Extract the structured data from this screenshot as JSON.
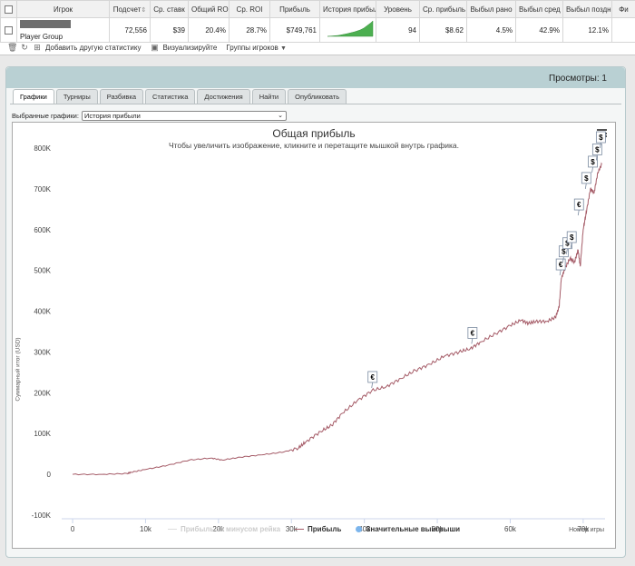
{
  "table": {
    "headers": [
      "Игрок",
      "Подсчет",
      "Ср. ставк",
      "Общий ROI",
      "Ср. ROI",
      "Прибыль",
      "История прибыли",
      "Уровень",
      "Ср. прибыль",
      "Выбыл рано",
      "Выбыл сред",
      "Выбыл поздн",
      "Фи"
    ],
    "row": {
      "player": "Player Group",
      "count": "72,556",
      "avg_stake": "$39",
      "total_roi": "20.4%",
      "avg_roi": "28.7%",
      "profit": "$749,761",
      "level": "94",
      "avg_profit": "$8.62",
      "early": "4.5%",
      "mid": "42.9%",
      "late": "12.1%"
    },
    "sparkline_color": "#4caf50"
  },
  "actions": {
    "add_stat": "Добавить другую статистику",
    "visualize": "Визуализируйте",
    "groups": "Группы игроков"
  },
  "panel": {
    "views": "Просмотры: 1",
    "tabs": [
      "Графики",
      "Турниры",
      "Разбивка",
      "Статистика",
      "Достижения",
      "Найти",
      "Опубликовать"
    ],
    "active_tab": 0,
    "select_label": "Выбранные графики:",
    "select_value": "История прибыли"
  },
  "chart_data": {
    "type": "line",
    "title": "Общая прибыль",
    "subtitle": "Чтобы увеличить изображение, кликните и перетащите мышкой внутрь графика.",
    "xlabel": "Номер игры",
    "ylabel": "Суммарный итог (USD)",
    "xlim": [
      -1500,
      73000
    ],
    "ylim": [
      -100000,
      800000
    ],
    "x_ticks": [
      0,
      10000,
      20000,
      30000,
      40000,
      50000,
      60000,
      70000
    ],
    "x_tick_labels": [
      "0",
      "10k",
      "20k",
      "30k",
      "40k",
      "50k",
      "60k",
      "70k"
    ],
    "y_ticks": [
      -100000,
      0,
      100000,
      200000,
      300000,
      400000,
      500000,
      600000,
      700000,
      800000
    ],
    "y_tick_labels": [
      "-100K",
      "0",
      "100K",
      "200K",
      "300K",
      "400K",
      "500K",
      "600K",
      "700K",
      "800K"
    ],
    "series": [
      {
        "name": "Прибыль",
        "color": "#a55b67",
        "x": [
          0,
          4000,
          7500,
          8000,
          10000,
          13000,
          16000,
          19000,
          20500,
          23000,
          26000,
          29000,
          31000,
          32000,
          34000,
          35500,
          37000,
          39000,
          41000,
          43000,
          45000,
          47000,
          49000,
          51000,
          53000,
          54500,
          56000,
          58000,
          60000,
          61500,
          62500,
          63500,
          65000,
          66200,
          66700,
          67000,
          67500,
          68200,
          68800,
          69300,
          69600,
          70000,
          70500,
          71000,
          71500,
          72000,
          72556
        ],
        "values": [
          0,
          0,
          2000,
          5000,
          12000,
          22000,
          35000,
          40000,
          35000,
          42000,
          48000,
          55000,
          65000,
          80000,
          105000,
          120000,
          150000,
          180000,
          205000,
          215000,
          235000,
          255000,
          270000,
          290000,
          300000,
          308000,
          325000,
          345000,
          365000,
          378000,
          370000,
          375000,
          375000,
          385000,
          410000,
          480000,
          505000,
          530000,
          520000,
          550000,
          510000,
          600000,
          650000,
          700000,
          690000,
          740000,
          760000
        ]
      },
      {
        "name": "Прибыль за минусом рейка",
        "color": "#dddddd",
        "visible": false
      }
    ],
    "big_wins": [
      {
        "x": 41000,
        "y": 212000,
        "symbol": "€"
      },
      {
        "x": 54700,
        "y": 320000,
        "symbol": "€"
      },
      {
        "x": 66800,
        "y": 488000,
        "symbol": "€"
      },
      {
        "x": 67200,
        "y": 520000,
        "symbol": "$"
      },
      {
        "x": 67700,
        "y": 540000,
        "symbol": "$"
      },
      {
        "x": 68300,
        "y": 555000,
        "symbol": "$"
      },
      {
        "x": 69300,
        "y": 635000,
        "symbol": "€"
      },
      {
        "x": 70300,
        "y": 700000,
        "symbol": "$"
      },
      {
        "x": 71200,
        "y": 740000,
        "symbol": "$"
      },
      {
        "x": 71800,
        "y": 770000,
        "symbol": "$"
      },
      {
        "x": 72300,
        "y": 800000,
        "symbol": "$"
      }
    ],
    "legend": [
      {
        "label": "Прибыль за минусом рейка",
        "type": "line",
        "color": "#dddddd",
        "inactive": true
      },
      {
        "label": "Прибыль",
        "type": "line",
        "color": "#a55b67"
      },
      {
        "label": "Значительные выигрыши",
        "type": "dot",
        "color": "#7cb5ec"
      }
    ],
    "legend_position": "bottom-center",
    "grid": false
  }
}
